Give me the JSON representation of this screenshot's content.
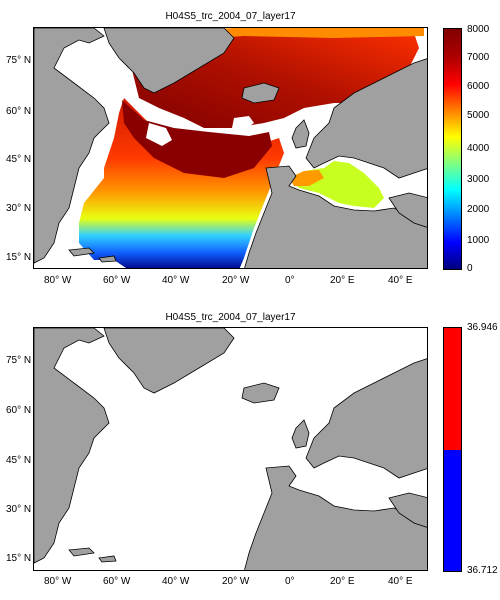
{
  "panels": [
    {
      "title": "H04S5_trc_2004_07_layer17",
      "lat_labels": [
        "75° N",
        "60° N",
        "45° N",
        "30° N",
        "15° N"
      ],
      "lon_labels": [
        "80° W",
        "60° W",
        "40° W",
        "20° W",
        "0°",
        "20° E",
        "40° E"
      ],
      "colorbar": {
        "type": "continuous",
        "colormap": "jet",
        "ticks": [
          "0",
          "1000",
          "2000",
          "3000",
          "4000",
          "5000",
          "6000",
          "7000",
          "8000"
        ],
        "min": 0,
        "max": 8000
      }
    },
    {
      "title": "H04S5_trc_2004_07_layer17",
      "lat_labels": [
        "75° N",
        "60° N",
        "45° N",
        "30° N",
        "15° N"
      ],
      "lon_labels": [
        "80° W",
        "60° W",
        "40° W",
        "20° W",
        "0°",
        "20° E",
        "40° E"
      ],
      "colorbar": {
        "type": "two-color",
        "top_label": "36.946",
        "bottom_label": "36.712",
        "colors": [
          "#0000ff",
          "#ff0000"
        ]
      }
    }
  ],
  "colors": {
    "land": "#a0a0a0",
    "coast": "#000000",
    "ocean_blank": "#ffffff"
  }
}
